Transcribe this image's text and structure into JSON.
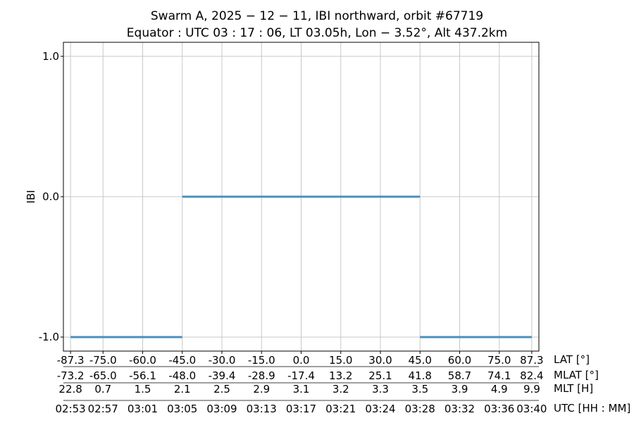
{
  "chart_data": {
    "type": "line",
    "title": [
      "Swarm A,  2025 − 12 − 11,  IBI northward,  orbit #67719",
      "Equator :  UTC 03 : 17 : 06,  LT 03.05h,  Lon  − 3.52°,  Alt 437.2km"
    ],
    "ylabel": "IBI",
    "ylim": [
      -1.1,
      1.1
    ],
    "yticks": [
      -1.0,
      0.0,
      1.0
    ],
    "ytick_labels": [
      "-1.0",
      "0.0",
      "1.0"
    ],
    "xlim": [
      -90.0,
      90.0
    ],
    "grid": true,
    "legend": "none",
    "series_color": "#4a90be",
    "segments": [
      {
        "x": [
          -87.3,
          -45.0
        ],
        "y": [
          -1.0,
          -1.0
        ]
      },
      {
        "x": [
          -45.0,
          45.0
        ],
        "y": [
          0.0,
          0.0
        ]
      },
      {
        "x": [
          45.0,
          87.3
        ],
        "y": [
          -1.0,
          -1.0
        ]
      }
    ],
    "xticks": [
      -87.3,
      -75.0,
      -60.0,
      -45.0,
      -30.0,
      -15.0,
      0.0,
      15.0,
      30.0,
      45.0,
      60.0,
      75.0,
      87.3
    ],
    "x_axis_rows": [
      {
        "name": "LAT [°]",
        "labels": [
          "-87.3",
          "-75.0",
          "-60.0",
          "-45.0",
          "-30.0",
          "-15.0",
          "0.0",
          "15.0",
          "30.0",
          "45.0",
          "60.0",
          "75.0",
          "87.3"
        ]
      },
      {
        "name": "MLAT [°]",
        "labels": [
          "-73.2",
          "-65.0",
          "-56.1",
          "-48.0",
          "-39.4",
          "-28.9",
          "-17.4",
          "13.2",
          "25.1",
          "41.8",
          "58.7",
          "74.1",
          "82.4"
        ]
      },
      {
        "name": "MLT [H]",
        "labels": [
          "22.8",
          "0.7",
          "1.5",
          "2.1",
          "2.5",
          "2.9",
          "3.1",
          "3.2",
          "3.3",
          "3.5",
          "3.9",
          "4.9",
          "9.9"
        ]
      },
      {
        "name": "UTC [HH : MM]",
        "labels": [
          "02:53",
          "02:57",
          "03:01",
          "03:05",
          "03:09",
          "03:13",
          "03:17",
          "03:21",
          "03:24",
          "03:28",
          "03:32",
          "03:36",
          "03:40"
        ]
      }
    ]
  }
}
